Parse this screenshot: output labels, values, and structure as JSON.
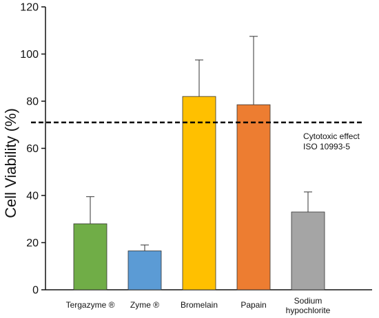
{
  "chart_data": {
    "type": "bar",
    "categories": [
      "Tergazyme ®",
      "Zyme ®",
      "Bromelain",
      "Papain",
      "Sodium hypochlorite"
    ],
    "category_lines": [
      [
        "Tergazyme ®"
      ],
      [
        "Zyme ®"
      ],
      [
        "Bromelain"
      ],
      [
        "Papain"
      ],
      [
        "Sodium",
        "hypochlorite"
      ]
    ],
    "values": [
      28,
      16.5,
      82,
      78.5,
      33
    ],
    "errors": [
      11.5,
      2.5,
      15.5,
      29,
      8.5
    ],
    "colors": [
      "#70ad47",
      "#5b9bd5",
      "#ffc000",
      "#ed7d31",
      "#a5a5a5"
    ],
    "ylabel": "Cell Viability  (%)",
    "xlabel": "",
    "ylim": [
      0,
      120
    ],
    "yticks": [
      0,
      20,
      40,
      60,
      80,
      100,
      120
    ],
    "threshold": {
      "value": 71,
      "label_lines": [
        "Cytotoxic effect",
        "ISO 10993-5"
      ]
    },
    "grid": false
  }
}
